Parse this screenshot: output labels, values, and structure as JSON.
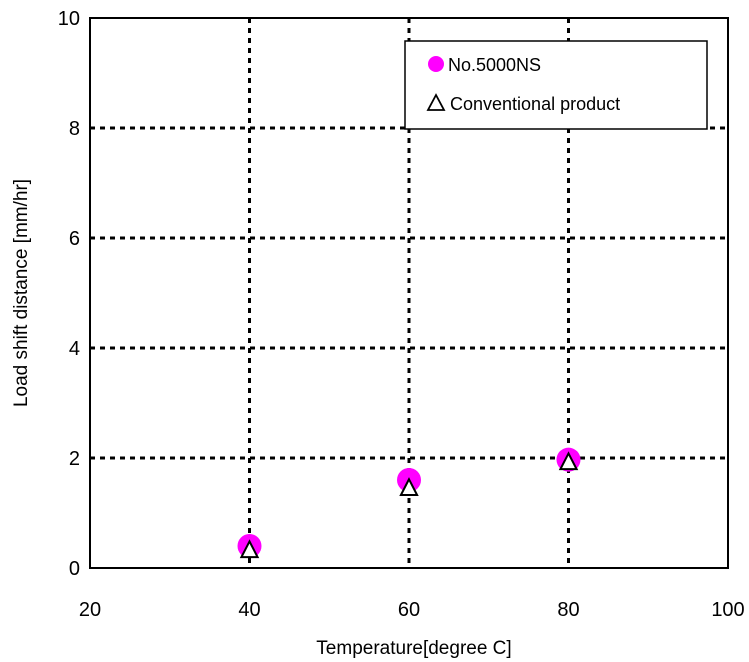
{
  "chart_data": {
    "type": "scatter",
    "title": "",
    "xlabel": "Temperature[degree C]",
    "ylabel": "Load shift distance [mm/hr]",
    "xlim": [
      20,
      100
    ],
    "ylim": [
      0,
      10
    ],
    "xticks": [
      "20",
      "40",
      "60",
      "80",
      "100"
    ],
    "yticks": [
      "0",
      "2",
      "4",
      "6",
      "8",
      "10"
    ],
    "grid": true,
    "legend_position": "top-right",
    "series": [
      {
        "name": "No.5000NS",
        "marker": "circle",
        "color": "#ff00ff",
        "x": [
          40,
          60,
          80
        ],
        "y": [
          0.4,
          1.6,
          1.97
        ]
      },
      {
        "name": "Conventional product",
        "marker": "triangle",
        "color": "#000000",
        "x": [
          40,
          60,
          80
        ],
        "y": [
          0.32,
          1.45,
          1.92
        ]
      }
    ]
  }
}
